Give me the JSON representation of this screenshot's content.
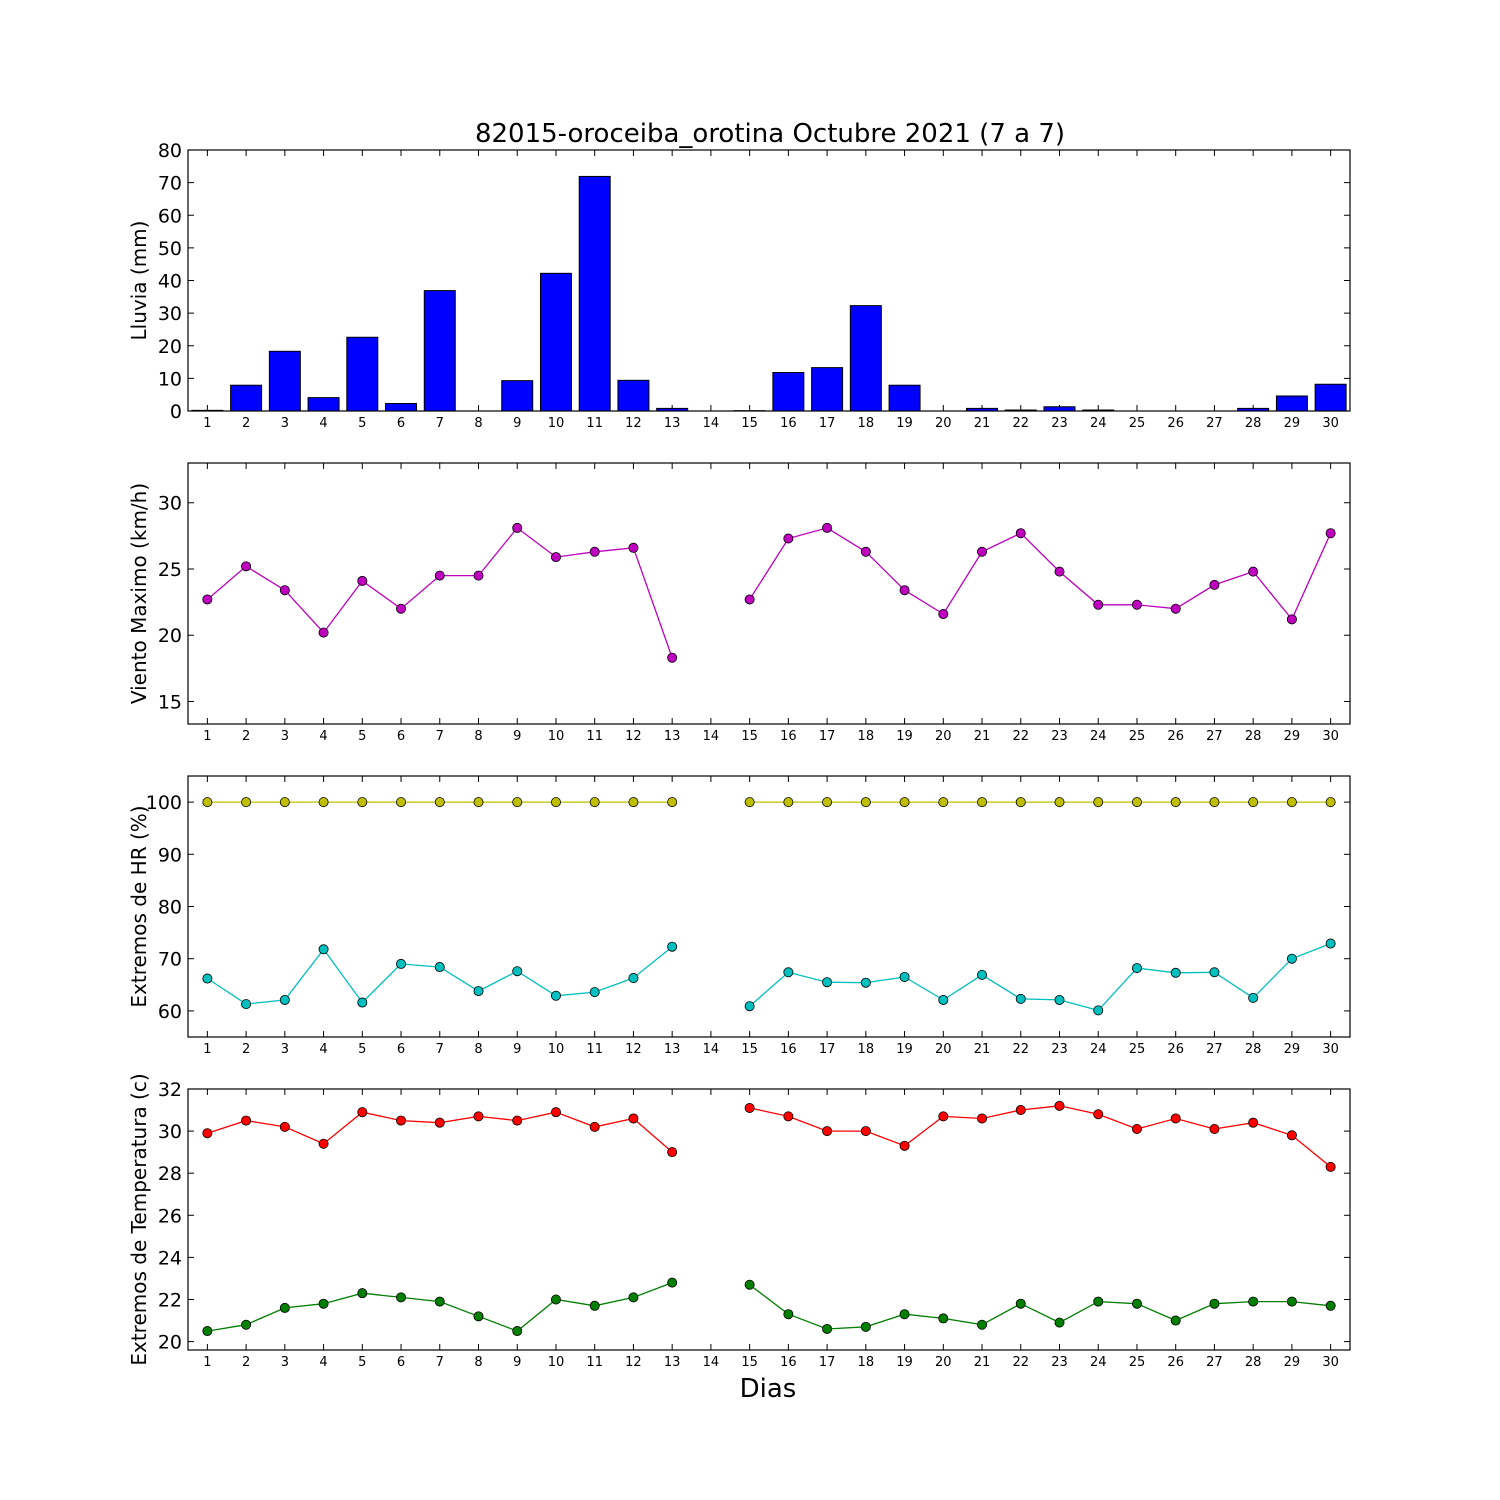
{
  "figure": {
    "title": "82015-oroceiba_orotina Octubre 2021  (7 a 7)",
    "xlabel": "Dias"
  },
  "chart_data": [
    {
      "type": "bar",
      "ylabel": "Lluvia (mm)",
      "ylim": [
        0,
        80
      ],
      "yticks": [
        0,
        10,
        20,
        30,
        40,
        50,
        60,
        70,
        80
      ],
      "categories": [
        "1",
        "2",
        "3",
        "4",
        "5",
        "6",
        "7",
        "8",
        "9",
        "10",
        "11",
        "12",
        "13",
        "14",
        "15",
        "16",
        "17",
        "18",
        "19",
        "20",
        "21",
        "22",
        "23",
        "24",
        "25",
        "26",
        "27",
        "28",
        "29",
        "30"
      ],
      "series": [
        {
          "color": "#0000ff",
          "values": [
            0.2,
            7.9,
            18.3,
            4.1,
            22.6,
            2.3,
            36.9,
            0,
            9.3,
            42.2,
            71.9,
            9.4,
            0.8,
            0,
            0.1,
            11.8,
            13.3,
            32.3,
            7.9,
            0,
            0.8,
            0.3,
            1.3,
            0.3,
            0,
            0,
            0,
            0.8,
            4.6,
            8.2
          ]
        }
      ]
    },
    {
      "type": "line",
      "ylabel": "Viento Maximo (km/h)",
      "ylim": [
        13.3,
        33
      ],
      "yticks": [
        15,
        20,
        25,
        30
      ],
      "categories": [
        "1",
        "2",
        "3",
        "4",
        "5",
        "6",
        "7",
        "8",
        "9",
        "10",
        "11",
        "12",
        "13",
        "14",
        "15",
        "16",
        "17",
        "18",
        "19",
        "20",
        "21",
        "22",
        "23",
        "24",
        "25",
        "26",
        "27",
        "28",
        "29",
        "30"
      ],
      "series": [
        {
          "color": "#bf00bf",
          "values": [
            22.7,
            25.2,
            23.4,
            20.2,
            24.1,
            22.0,
            24.5,
            24.5,
            28.1,
            25.9,
            26.3,
            26.6,
            18.3,
            null,
            22.7,
            27.3,
            28.1,
            26.3,
            23.4,
            21.6,
            26.3,
            27.7,
            24.8,
            22.3,
            22.3,
            22.0,
            23.8,
            24.8,
            21.2,
            27.7
          ]
        }
      ]
    },
    {
      "type": "line",
      "ylabel": "Extremos de HR (%)",
      "ylim": [
        55,
        105
      ],
      "yticks": [
        60,
        70,
        80,
        90,
        100
      ],
      "categories": [
        "1",
        "2",
        "3",
        "4",
        "5",
        "6",
        "7",
        "8",
        "9",
        "10",
        "11",
        "12",
        "13",
        "14",
        "15",
        "16",
        "17",
        "18",
        "19",
        "20",
        "21",
        "22",
        "23",
        "24",
        "25",
        "26",
        "27",
        "28",
        "29",
        "30"
      ],
      "series": [
        {
          "color": "#bfbf00",
          "values": [
            100,
            100,
            100,
            100,
            100,
            100,
            100,
            100,
            100,
            100,
            100,
            100,
            100,
            null,
            100,
            100,
            100,
            100,
            100,
            100,
            100,
            100,
            100,
            100,
            100,
            100,
            100,
            100,
            100,
            100
          ]
        },
        {
          "color": "#00bfbf",
          "values": [
            66.2,
            61.3,
            62.1,
            71.8,
            61.6,
            69.0,
            68.4,
            63.8,
            67.6,
            62.9,
            63.6,
            66.3,
            72.3,
            null,
            60.9,
            67.4,
            65.5,
            65.4,
            66.5,
            62.1,
            66.9,
            62.3,
            62.1,
            60.1,
            68.2,
            67.3,
            67.4,
            62.5,
            70.0,
            72.9
          ]
        }
      ]
    },
    {
      "type": "line",
      "ylabel": "Extremos de Temperatura (c)",
      "ylim": [
        19.6,
        32
      ],
      "yticks": [
        20,
        22,
        24,
        26,
        28,
        30,
        32
      ],
      "categories": [
        "1",
        "2",
        "3",
        "4",
        "5",
        "6",
        "7",
        "8",
        "9",
        "10",
        "11",
        "12",
        "13",
        "14",
        "15",
        "16",
        "17",
        "18",
        "19",
        "20",
        "21",
        "22",
        "23",
        "24",
        "25",
        "26",
        "27",
        "28",
        "29",
        "30"
      ],
      "series": [
        {
          "color": "#ff0000",
          "values": [
            29.9,
            30.5,
            30.2,
            29.4,
            30.9,
            30.5,
            30.4,
            30.7,
            30.5,
            30.9,
            30.2,
            30.6,
            29.0,
            null,
            31.1,
            30.7,
            30.0,
            30.0,
            29.3,
            30.7,
            30.6,
            31.0,
            31.2,
            30.8,
            30.1,
            30.6,
            30.1,
            30.4,
            29.8,
            28.3
          ]
        },
        {
          "color": "#007f00",
          "values": [
            20.5,
            20.8,
            21.6,
            21.8,
            22.3,
            22.1,
            21.9,
            21.2,
            20.5,
            22.0,
            21.7,
            22.1,
            22.8,
            null,
            22.7,
            21.3,
            20.6,
            20.7,
            21.3,
            21.1,
            20.8,
            21.8,
            20.9,
            21.9,
            21.8,
            21.0,
            21.8,
            21.9,
            21.9,
            21.7
          ]
        }
      ]
    }
  ]
}
